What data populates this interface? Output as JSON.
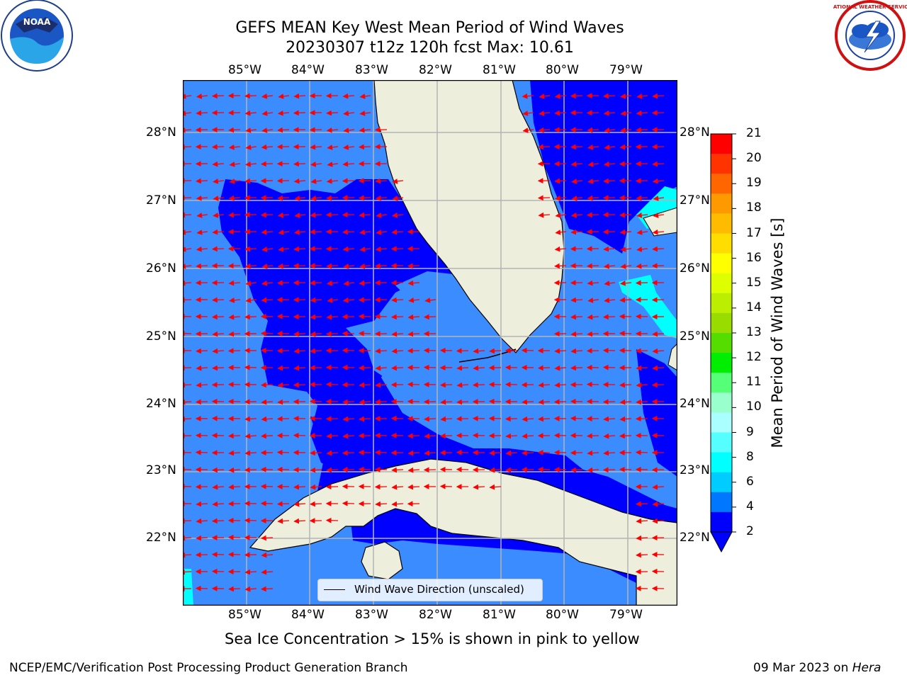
{
  "title": {
    "line1": "GEFS MEAN Key West Mean Period of Wind Waves",
    "line2": "20230307 t12z 120h fcst   Max: 10.61"
  },
  "map": {
    "lon_ticks": [
      "85°W",
      "84°W",
      "83°W",
      "82°W",
      "81°W",
      "80°W",
      "79°W"
    ],
    "lat_ticks": [
      "28°N",
      "27°N",
      "26°N",
      "25°N",
      "24°N",
      "23°N",
      "22°N"
    ],
    "legend_label": "Wind Wave Direction (unscaled)",
    "vector_color": "#ff0000"
  },
  "colorbar": {
    "label": "Mean Period of Wind Waves [s]",
    "ticks": [
      "21",
      "20",
      "19",
      "18",
      "17",
      "16",
      "15",
      "14",
      "13",
      "12",
      "11",
      "10",
      "9",
      "8",
      "6",
      "4",
      "2"
    ],
    "colors": [
      "#ff0000",
      "#ff3300",
      "#ff6600",
      "#ff9900",
      "#ffbb00",
      "#ffdd00",
      "#ffff00",
      "#ddff00",
      "#bbee00",
      "#99dd00",
      "#55dd00",
      "#00ee00",
      "#55ff77",
      "#99ffcc",
      "#aaffff",
      "#55ffff",
      "#00ffff",
      "#00ccff",
      "#0077ff",
      "#0000ff"
    ]
  },
  "palette": {
    "sea_deep": "#0000ff",
    "sea_mid": "#3a8cff",
    "sea_light": "#00ffff",
    "land": "#eeeedd"
  },
  "caption": "Sea Ice Concentration > 15% is shown in pink to yellow",
  "footer": {
    "left": "NCEP/EMC/Verification Post Processing Product Generation Branch",
    "right_date": "09 Mar 2023 on",
    "right_host": "Hera"
  },
  "logos": {
    "noaa": "NOAA",
    "nws": "NATIONAL WEATHER SERVICE"
  }
}
